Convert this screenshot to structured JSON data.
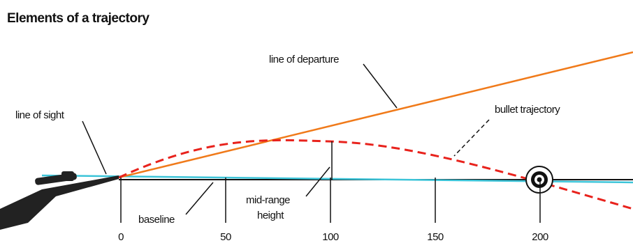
{
  "title": "Elements of a trajectory",
  "labels": {
    "line_of_departure": "line of departure",
    "line_of_sight": "line of sight",
    "bullet_trajectory": "bullet trajectory",
    "mid_range_height": [
      "mid-range",
      "height"
    ],
    "baseline": "baseline"
  },
  "scale": [
    0,
    50,
    100,
    150,
    200
  ]
}
